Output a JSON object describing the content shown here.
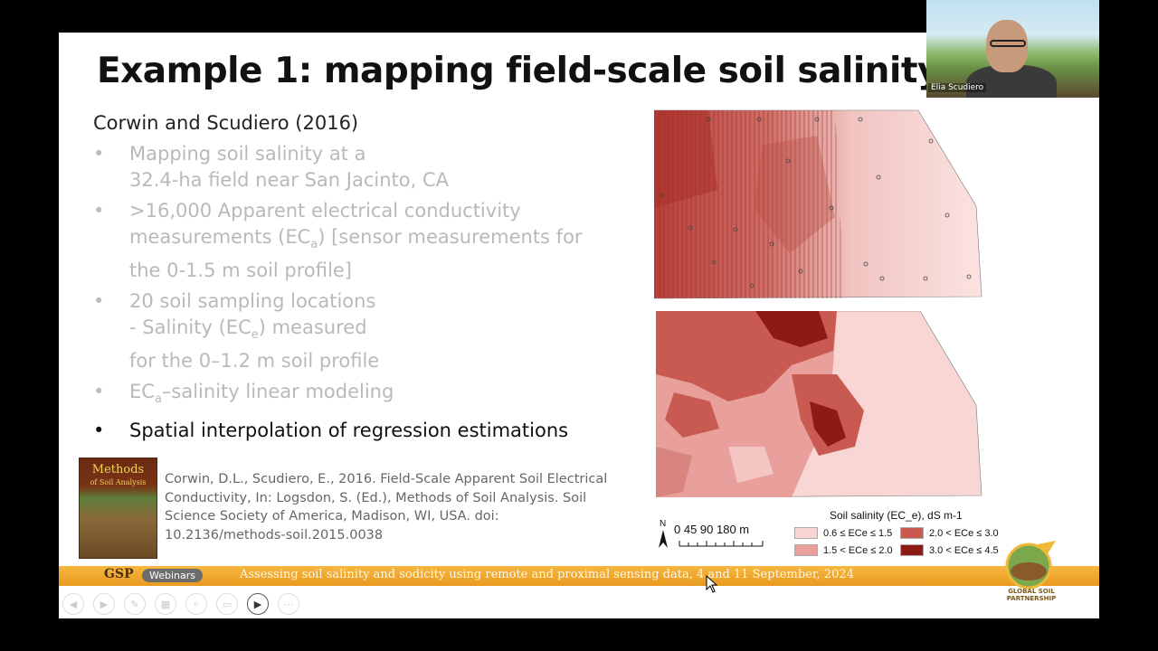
{
  "slide": {
    "title": "Example 1: mapping field-scale soil salinity",
    "subtitle": "Corwin and Scudiero (2016)",
    "bullets": [
      {
        "lines": [
          "Mapping soil salinity at a",
          "32.4-ha field near San Jacinto, CA"
        ],
        "active": false
      },
      {
        "lines": [
          ">16,000 Apparent electrical conductivity",
          "measurements (EC_a) [sensor measurements for",
          "the 0-1.5 m soil profile]"
        ],
        "active": false
      },
      {
        "lines": [
          "20 soil sampling locations",
          "- Salinity (EC_e) measured",
          "for the 0–1.2 m soil profile"
        ],
        "active": false
      },
      {
        "lines": [
          "EC_a–salinity linear modeling"
        ],
        "active": false
      },
      {
        "lines": [
          "Spatial interpolation of regression estimations"
        ],
        "active": true
      }
    ],
    "book": {
      "title": "Methods",
      "subtitle": "of Soil Analysis"
    },
    "citation": "Corwin, D.L., Scudiero, E., 2016. Field-Scale Apparent Soil Electrical Conductivity, In: Logsdon, S. (Ed.), Methods of Soil Analysis. Soil Science Society of America, Madison, WI, USA. doi: 10.2136/methods-soil.2015.0038",
    "scale": {
      "north": "N",
      "label": "0  45 90      180 m"
    },
    "legend": {
      "title": "Soil salinity (EC_e), dS m-1",
      "items": [
        {
          "label": "0.6 ≤ ECe ≤ 1.5",
          "color": "#f8d4d2"
        },
        {
          "label": "1.5 < ECe ≤ 2.0",
          "color": "#e9a09c"
        },
        {
          "label": "2.0 < ECe ≤ 3.0",
          "color": "#c85a52"
        },
        {
          "label": "3.0 < ECe ≤ 4.5",
          "color": "#8e1a14"
        }
      ]
    }
  },
  "banner": {
    "brand": "GSP",
    "webinars": "Webinars",
    "text": "Assessing soil salinity and sodicity using remote and proximal sensing data, 4 and 11 September, 2024"
  },
  "logo": {
    "text": "GLOBAL SOIL PARTNERSHIP"
  },
  "webcam": {
    "name": "Elia Scudiero"
  },
  "colors": {
    "banner": "#f0a830",
    "slide_bg": "#ffffff",
    "frame_bg": "#000000"
  }
}
